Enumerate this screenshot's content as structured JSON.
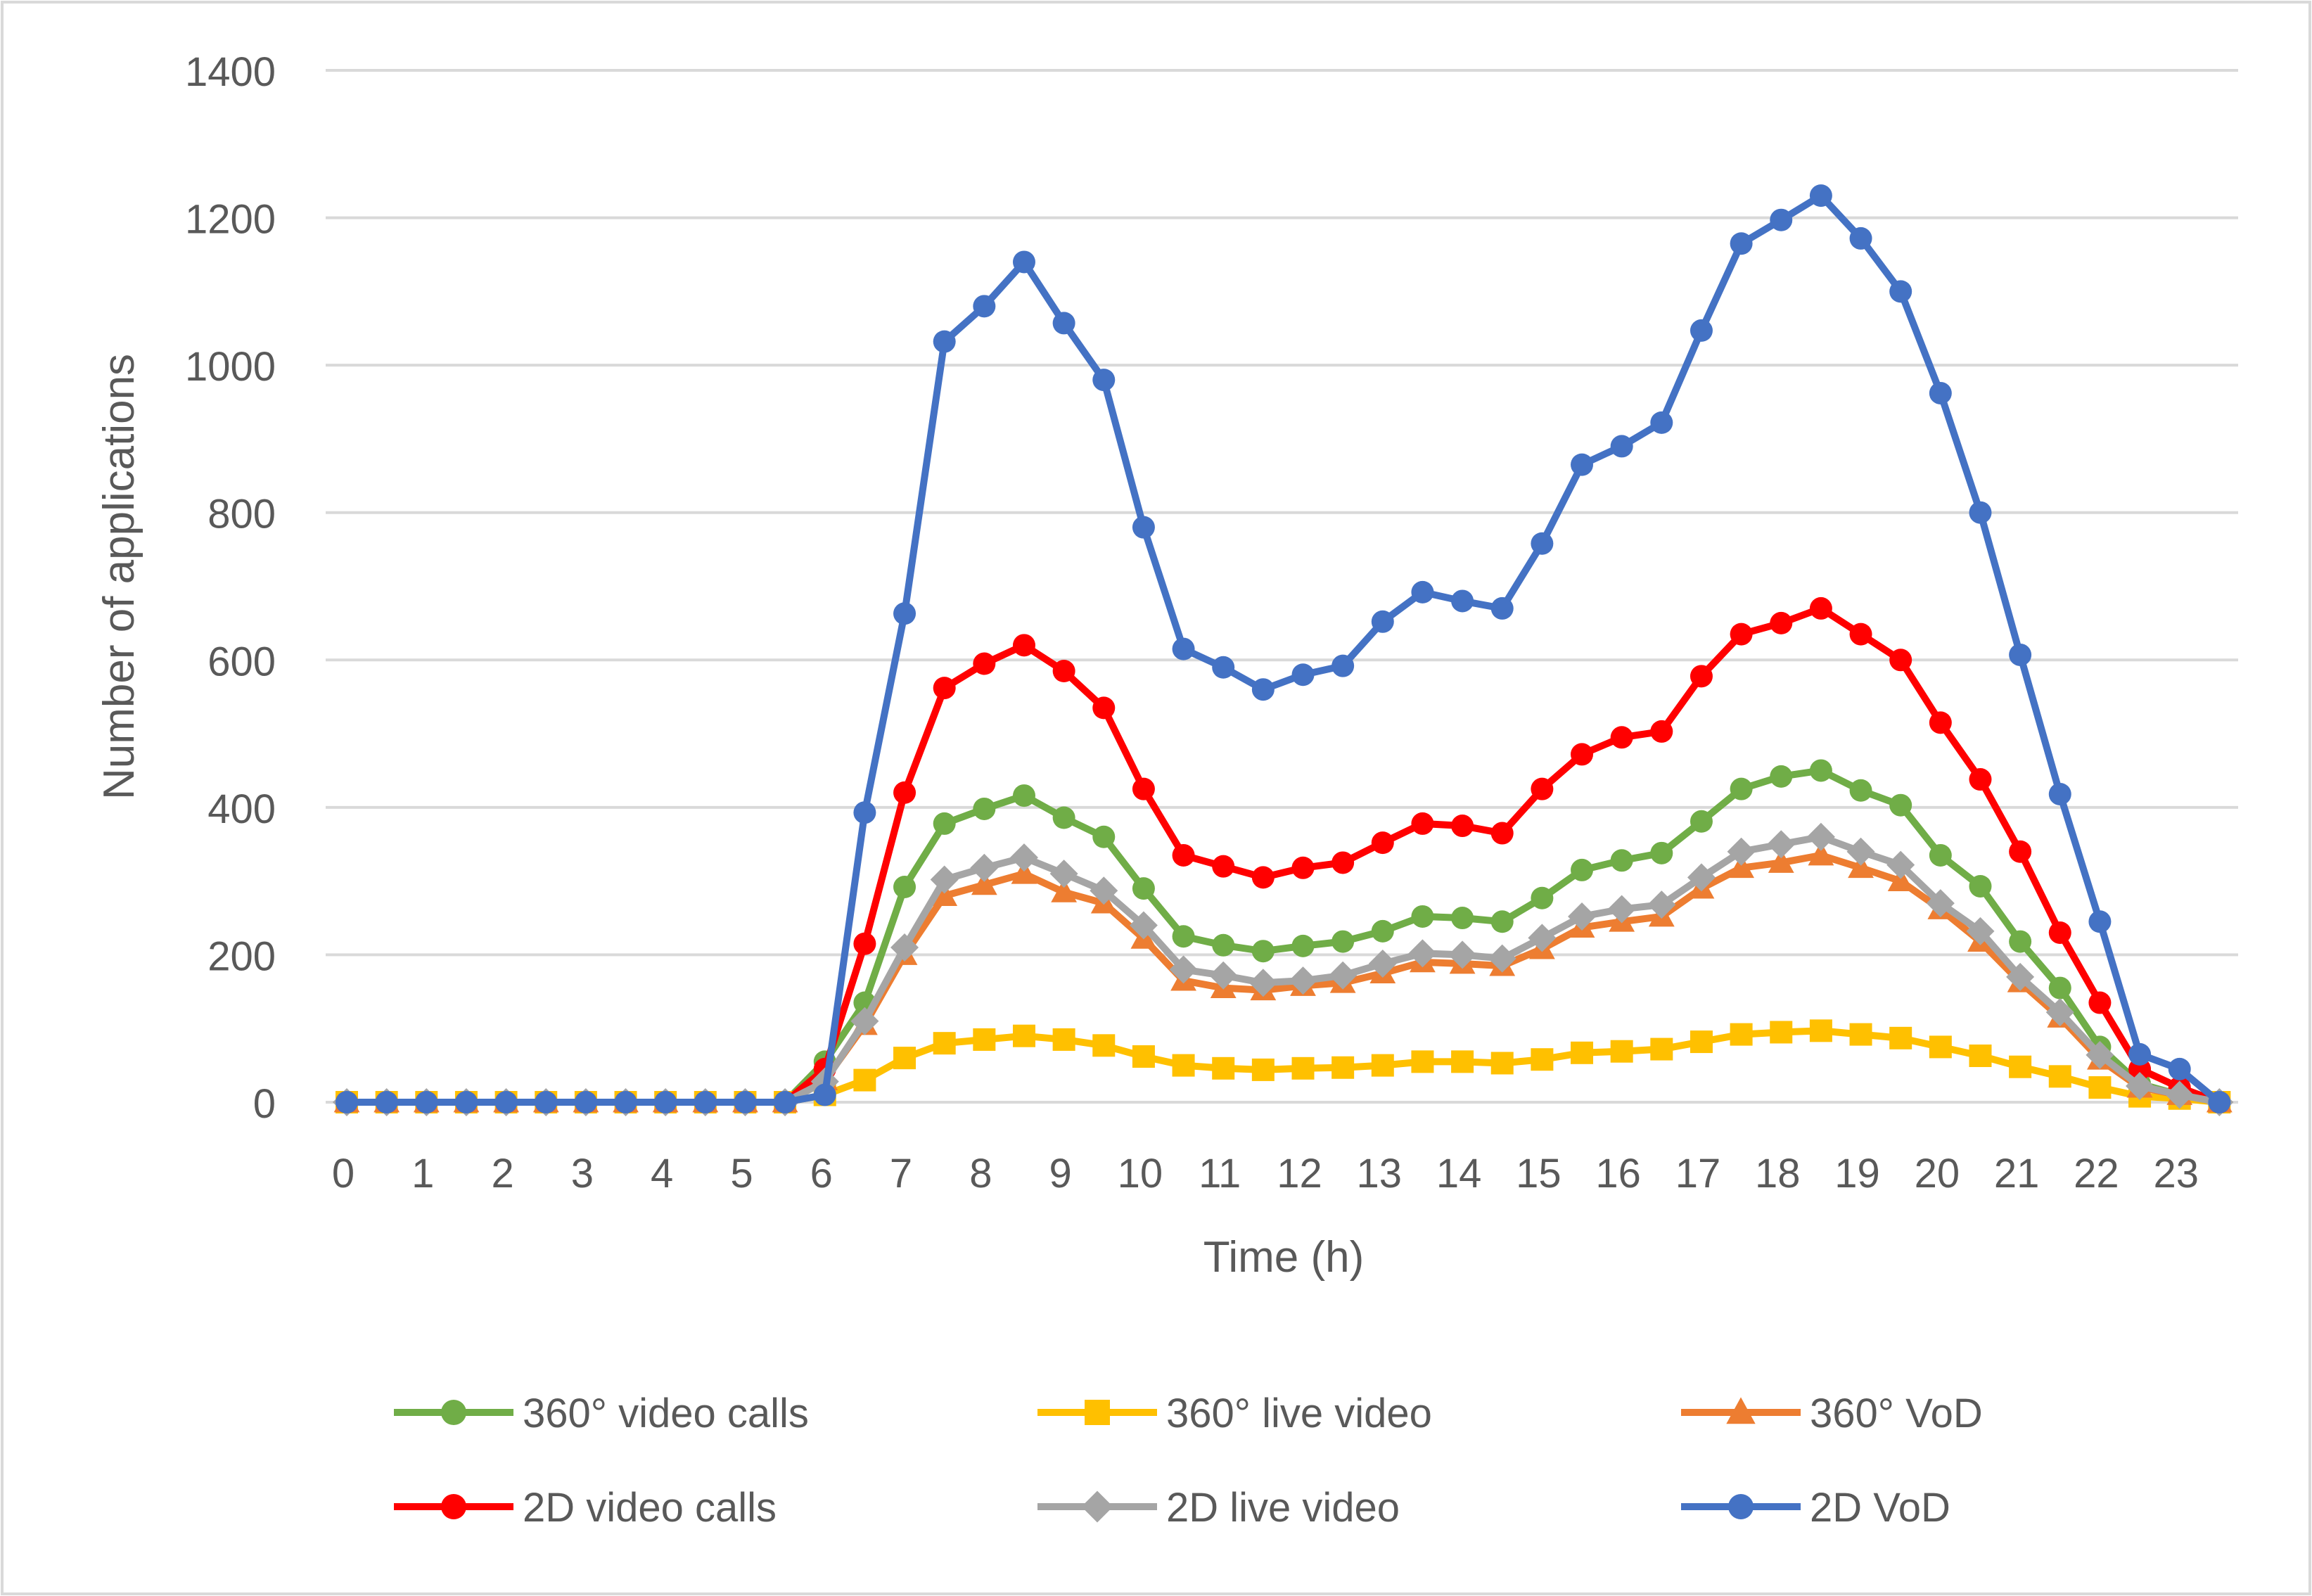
{
  "chart_data": {
    "type": "line",
    "title": "",
    "xlabel": "Time (h)",
    "ylabel": "Number of applications",
    "ylim": [
      0,
      1400
    ],
    "yticks": [
      0,
      200,
      400,
      600,
      800,
      1000,
      1200,
      1400
    ],
    "xticks": [
      "0",
      "1",
      "2",
      "3",
      "4",
      "5",
      "6",
      "7",
      "8",
      "9",
      "10",
      "11",
      "12",
      "13",
      "14",
      "15",
      "16",
      "17",
      "18",
      "19",
      "20",
      "21",
      "22",
      "23"
    ],
    "x": [
      0,
      0.5,
      1,
      1.5,
      2,
      2.5,
      3,
      3.5,
      4,
      4.5,
      5,
      5.5,
      6,
      6.5,
      7,
      7.5,
      8,
      8.5,
      9,
      9.5,
      10,
      10.5,
      11,
      11.5,
      12,
      12.5,
      13,
      13.5,
      14,
      14.5,
      15,
      15.5,
      16,
      16.5,
      17,
      17.5,
      18,
      18.5,
      19,
      19.5,
      20,
      20.5,
      21,
      21.5,
      22,
      22.5,
      23,
      23.5
    ],
    "grid": true,
    "legend_position": "bottom",
    "series": [
      {
        "name": "360° video calls",
        "color": "#70AD47",
        "marker": "circle",
        "values": [
          0,
          0,
          0,
          0,
          0,
          0,
          0,
          0,
          0,
          0,
          0,
          0,
          55,
          135,
          292,
          378,
          398,
          416,
          386,
          360,
          290,
          225,
          213,
          205,
          212,
          218,
          232,
          252,
          250,
          245,
          277,
          315,
          328,
          338,
          381,
          425,
          442,
          450,
          423,
          403,
          335,
          293,
          218,
          155,
          75,
          25,
          10,
          0
        ]
      },
      {
        "name": "360° live video",
        "color": "#FFC000",
        "marker": "square",
        "values": [
          0,
          0,
          0,
          0,
          0,
          0,
          0,
          0,
          0,
          0,
          0,
          0,
          10,
          30,
          60,
          80,
          85,
          90,
          85,
          77,
          62,
          50,
          46,
          44,
          46,
          47,
          50,
          55,
          55,
          53,
          58,
          67,
          69,
          72,
          82,
          92,
          95,
          97,
          92,
          87,
          75,
          63,
          48,
          35,
          20,
          8,
          5,
          0
        ]
      },
      {
        "name": "360° VoD",
        "color": "#ED7D31",
        "marker": "triangle",
        "values": [
          0,
          0,
          0,
          0,
          0,
          0,
          0,
          0,
          0,
          0,
          0,
          0,
          30,
          105,
          200,
          280,
          295,
          310,
          285,
          270,
          222,
          165,
          155,
          152,
          158,
          162,
          175,
          190,
          188,
          185,
          208,
          237,
          245,
          252,
          290,
          318,
          325,
          335,
          318,
          300,
          262,
          218,
          163,
          115,
          58,
          20,
          10,
          0
        ]
      },
      {
        "name": "2D video calls",
        "color": "#FF0000",
        "marker": "circle",
        "values": [
          0,
          0,
          0,
          0,
          0,
          0,
          0,
          0,
          0,
          0,
          0,
          0,
          45,
          215,
          420,
          562,
          595,
          620,
          585,
          535,
          425,
          335,
          320,
          305,
          318,
          325,
          352,
          378,
          375,
          365,
          425,
          472,
          495,
          503,
          578,
          635,
          650,
          670,
          635,
          600,
          515,
          438,
          340,
          230,
          135,
          45,
          20,
          0
        ]
      },
      {
        "name": "2D live video",
        "color": "#A5A5A5",
        "marker": "diamond",
        "values": [
          0,
          0,
          0,
          0,
          0,
          0,
          0,
          0,
          0,
          0,
          0,
          0,
          28,
          110,
          210,
          302,
          318,
          332,
          310,
          287,
          240,
          180,
          172,
          162,
          165,
          172,
          188,
          202,
          200,
          195,
          223,
          252,
          262,
          268,
          305,
          340,
          350,
          360,
          340,
          322,
          270,
          232,
          170,
          122,
          64,
          22,
          10,
          0
        ]
      },
      {
        "name": "2D VoD",
        "color": "#4472C4",
        "marker": "circle",
        "values": [
          0,
          0,
          0,
          0,
          0,
          0,
          0,
          0,
          0,
          0,
          0,
          0,
          10,
          393,
          663,
          1032,
          1080,
          1140,
          1057,
          980,
          780,
          615,
          590,
          560,
          580,
          592,
          652,
          692,
          680,
          670,
          758,
          865,
          890,
          922,
          1047,
          1165,
          1197,
          1230,
          1172,
          1100,
          962,
          800,
          607,
          418,
          245,
          65,
          45,
          0
        ]
      }
    ]
  }
}
